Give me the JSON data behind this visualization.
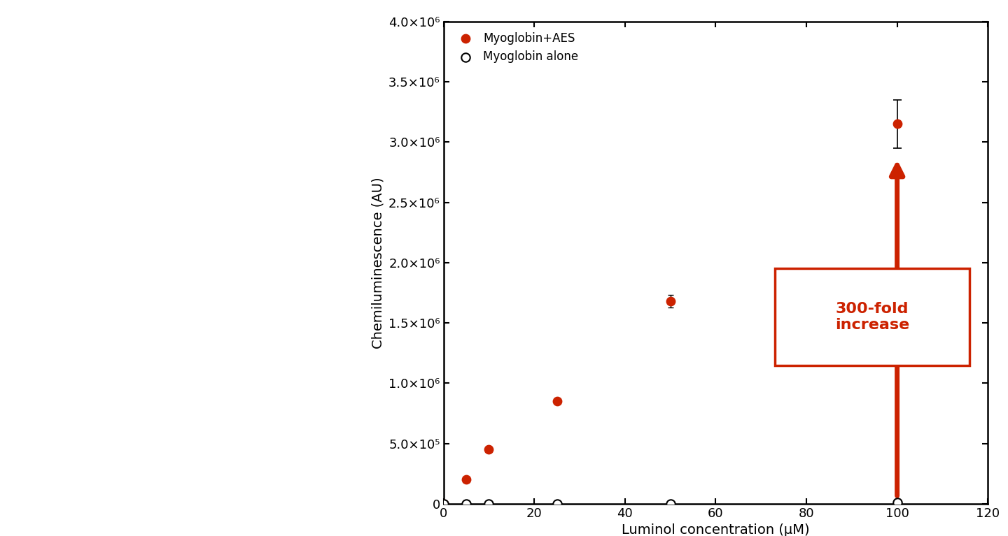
{
  "xlabel": "Luminol concentration (μM)",
  "ylabel": "Chemiluminescence (AU)",
  "xlim": [
    0,
    120
  ],
  "ylim": [
    0,
    4000000
  ],
  "xticks": [
    0,
    20,
    40,
    60,
    80,
    100,
    120
  ],
  "yticks": [
    0,
    500000,
    1000000,
    1500000,
    2000000,
    2500000,
    3000000,
    3500000,
    4000000
  ],
  "ytick_labels": [
    "0",
    "5.0×10⁵",
    "1.0×10⁶",
    "1.5×10⁶",
    "2.0×10⁶",
    "2.5×10⁶",
    "3.0×10⁶",
    "3.5×10⁶",
    "4.0×10⁶"
  ],
  "aes_x": [
    0,
    5,
    10,
    25,
    50,
    100
  ],
  "aes_y": [
    0,
    200000,
    450000,
    850000,
    1680000,
    3150000
  ],
  "aes_yerr": [
    0,
    0,
    0,
    0,
    50000,
    200000
  ],
  "alone_x": [
    0,
    5,
    10,
    25,
    50,
    100
  ],
  "alone_y": [
    0,
    0,
    0,
    0,
    0,
    10000
  ],
  "aes_color": "#cc2200",
  "alone_color": "#000000",
  "legend_aes": "Myoglobin+AES",
  "legend_alone": "Myoglobin alone",
  "annotation_text": "300-fold\nincrease",
  "annotation_box_color": "#cc2200",
  "fig_width": 14.4,
  "fig_height": 7.67,
  "fig_dpi": 100
}
